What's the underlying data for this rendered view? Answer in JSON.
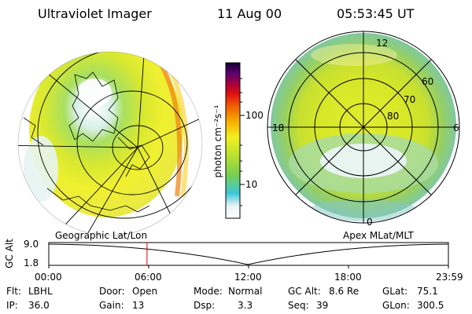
{
  "header": {
    "instrument": "Ultraviolet Imager",
    "date": "11 Aug 00",
    "time": "05:53:45 UT"
  },
  "colorbar": {
    "unit_label": "photon cm⁻²s⁻¹",
    "ticks": [
      "100",
      "10"
    ]
  },
  "left_panel": {
    "label": "Geographic Lat/Lon"
  },
  "right_panel": {
    "label": "Apex MLat/MLT",
    "mlt_labels": [
      "12",
      "18",
      "6",
      "0"
    ],
    "lat_labels": [
      "60",
      "70",
      "80"
    ]
  },
  "timeline": {
    "axis_label": "GC Alt",
    "y_ticks": [
      "9.0",
      "1.8"
    ],
    "x_ticks": [
      "00:00",
      "06:00",
      "12:00",
      "18:00",
      "23:59"
    ],
    "current_time_hours": 5.9
  },
  "info": {
    "filter": {
      "label": "Flt:",
      "value": "LBHL"
    },
    "ip": {
      "label": "IP:",
      "value": "36.0"
    },
    "door": {
      "label": "Door:",
      "value": "Open"
    },
    "gain": {
      "label": "Gain:",
      "value": "13"
    },
    "mode": {
      "label": "Mode:",
      "value": "Normal"
    },
    "dsp": {
      "label": "Dsp:",
      "value": "3.3"
    },
    "gc_alt": {
      "label": "GC Alt:",
      "value": "8.6 Re"
    },
    "seq": {
      "label": "Seq:",
      "value": "39"
    },
    "glat": {
      "label": "GLat:",
      "value": "75.1"
    },
    "glon": {
      "label": "GLon:",
      "value": "300.5"
    }
  }
}
